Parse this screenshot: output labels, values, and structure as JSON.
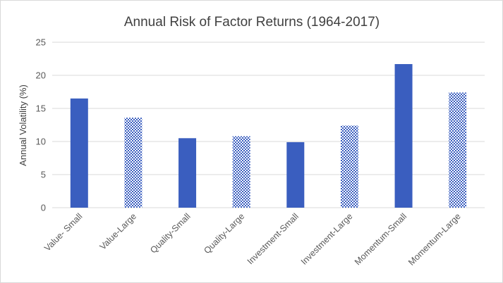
{
  "chart_data": {
    "type": "bar",
    "title": "Annual Risk of Factor Returns (1964-2017)",
    "xlabel": "",
    "ylabel": "Annual Volatility (%)",
    "ylim": [
      0,
      25
    ],
    "yticks": [
      0,
      5,
      10,
      15,
      20,
      25
    ],
    "grid": true,
    "legend": "none",
    "categories": [
      "Value- Small",
      "Value-Large",
      "Quality-Small",
      "Quality-Large",
      "Investment-Small",
      "Investment-Large",
      "Momentum-Small",
      "Momentum-Large"
    ],
    "values": [
      16.5,
      13.6,
      10.5,
      10.8,
      9.9,
      12.4,
      21.7,
      17.4
    ],
    "fill_styles": [
      "solid",
      "checkered",
      "solid",
      "checkered",
      "solid",
      "checkered",
      "solid",
      "checkered"
    ],
    "colors": {
      "bar": "#3a5ebf",
      "grid": "#d9d9d9",
      "axis_text": "#595959",
      "title_text": "#404040"
    }
  }
}
